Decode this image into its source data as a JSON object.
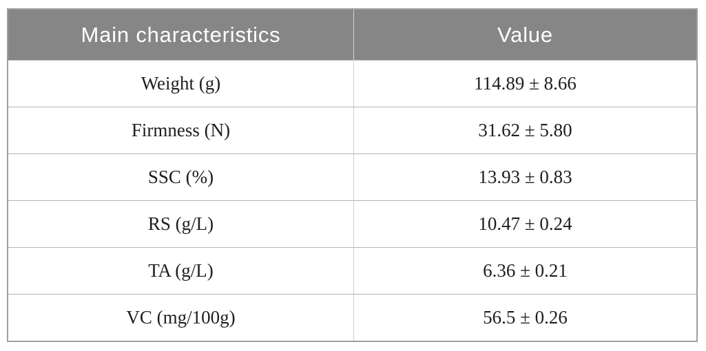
{
  "table": {
    "columns": [
      {
        "label": "Main characteristics"
      },
      {
        "label": "Value"
      }
    ],
    "rows": [
      {
        "characteristic": "Weight (g)",
        "value": "114.89 ± 8.66"
      },
      {
        "characteristic": "Firmness (N)",
        "value": "31.62 ± 5.80"
      },
      {
        "characteristic": "SSC (%)",
        "value": "13.93 ± 0.83"
      },
      {
        "characteristic": "RS (g/L)",
        "value": "10.47 ± 0.24"
      },
      {
        "characteristic": "TA (g/L)",
        "value": "6.36 ± 0.21"
      },
      {
        "characteristic": "VC (mg/100g)",
        "value": "56.5 ± 0.26"
      }
    ]
  },
  "colors": {
    "header_bg": "#868686",
    "header_text": "#ffffff",
    "body_text": "#1e1e1e",
    "outer_border": "#9f9f9f",
    "row_divider": "#b3b3b3",
    "column_divider": "#cfcfcf"
  },
  "chart_data": {
    "type": "table",
    "columns": [
      "Main characteristics",
      "Value"
    ],
    "rows": [
      [
        "Weight (g)",
        "114.89 ± 8.66"
      ],
      [
        "Firmness (N)",
        "31.62 ± 5.80"
      ],
      [
        "SSC (%)",
        "13.93 ± 0.83"
      ],
      [
        "RS (g/L)",
        "10.47 ± 0.24"
      ],
      [
        "TA (g/L)",
        "6.36 ± 0.21"
      ],
      [
        "VC (mg/100g)",
        "56.5 ± 0.26"
      ]
    ]
  }
}
